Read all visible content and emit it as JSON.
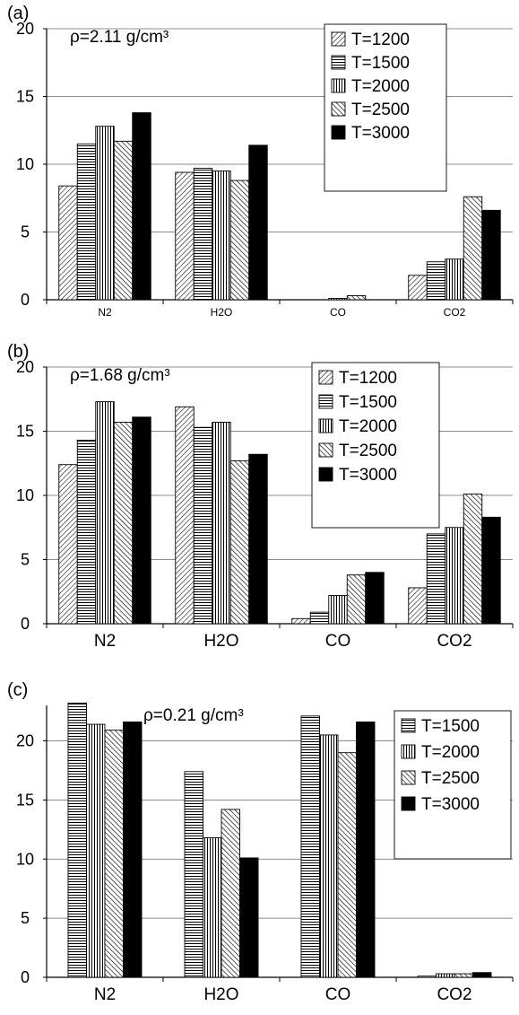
{
  "chart_data": [
    {
      "type": "bar",
      "panel_label": "(a)",
      "annotation": "ρ=2.11 g/cm³",
      "categories": [
        "N2",
        "H2O",
        "CO",
        "CO2"
      ],
      "ylim": [
        0,
        20
      ],
      "yticks": [
        "0",
        "5",
        "10",
        "15",
        "20"
      ],
      "grid": true,
      "legend_position": "top-right",
      "series": [
        {
          "name": "T=1200",
          "pattern": "hatch-diag-right",
          "values": [
            8.4,
            9.4,
            0.0,
            1.8
          ]
        },
        {
          "name": "T=1500",
          "pattern": "hatch-horizontal",
          "values": [
            11.5,
            9.7,
            0.0,
            2.8
          ]
        },
        {
          "name": "T=2000",
          "pattern": "hatch-vertical",
          "values": [
            12.8,
            9.5,
            0.1,
            3.0
          ]
        },
        {
          "name": "T=2500",
          "pattern": "hatch-diag-left",
          "values": [
            11.7,
            8.8,
            0.3,
            7.6
          ]
        },
        {
          "name": "T=3000",
          "pattern": "solid",
          "values": [
            13.8,
            11.4,
            0.0,
            6.6
          ]
        }
      ]
    },
    {
      "type": "bar",
      "panel_label": "(b)",
      "annotation": "ρ=1.68 g/cm³",
      "categories": [
        "N2",
        "H2O",
        "CO",
        "CO2"
      ],
      "ylim": [
        0,
        20
      ],
      "yticks": [
        "0",
        "5",
        "10",
        "15",
        "20"
      ],
      "grid": true,
      "legend_position": "top-right",
      "series": [
        {
          "name": "T=1200",
          "pattern": "hatch-diag-right",
          "values": [
            12.4,
            16.9,
            0.4,
            2.8
          ]
        },
        {
          "name": "T=1500",
          "pattern": "hatch-horizontal",
          "values": [
            14.3,
            15.3,
            0.9,
            7.0
          ]
        },
        {
          "name": "T=2000",
          "pattern": "hatch-vertical",
          "values": [
            17.3,
            15.7,
            2.2,
            7.5
          ]
        },
        {
          "name": "T=2500",
          "pattern": "hatch-diag-left",
          "values": [
            15.7,
            12.7,
            3.8,
            10.1
          ]
        },
        {
          "name": "T=3000",
          "pattern": "solid",
          "values": [
            16.1,
            13.2,
            4.0,
            8.3
          ]
        }
      ]
    },
    {
      "type": "bar",
      "panel_label": "(c)",
      "annotation": "ρ=0.21 g/cm³",
      "categories": [
        "N2",
        "H2O",
        "CO",
        "CO2"
      ],
      "ylim": [
        0,
        23
      ],
      "yticks": [
        "0",
        "5",
        "10",
        "15",
        "20"
      ],
      "grid": true,
      "legend_position": "top-right",
      "series": [
        {
          "name": "T=1500",
          "pattern": "hatch-horizontal",
          "values": [
            23.2,
            17.4,
            22.1,
            0.1
          ]
        },
        {
          "name": "T=2000",
          "pattern": "hatch-vertical",
          "values": [
            21.4,
            11.8,
            20.5,
            0.3
          ]
        },
        {
          "name": "T=2500",
          "pattern": "hatch-diag-left",
          "values": [
            20.9,
            14.2,
            19.0,
            0.3
          ]
        },
        {
          "name": "T=3000",
          "pattern": "solid",
          "values": [
            21.6,
            10.1,
            21.6,
            0.4
          ]
        }
      ]
    }
  ]
}
